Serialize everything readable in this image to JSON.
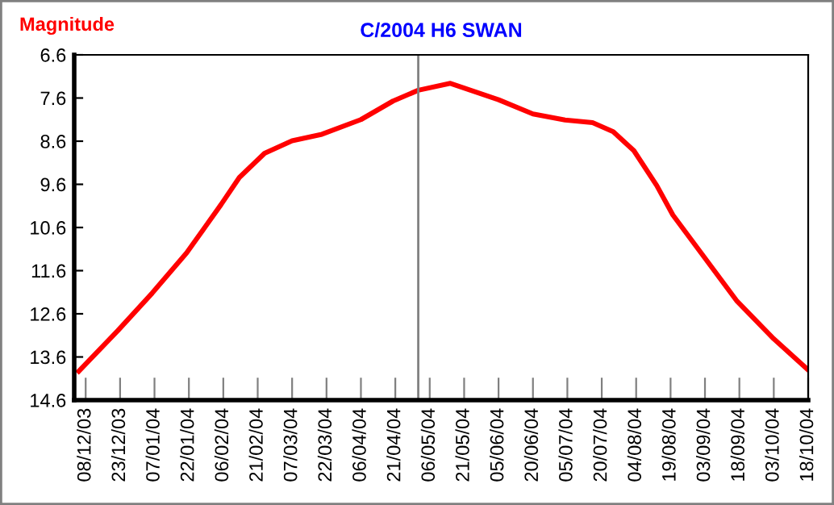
{
  "chart_data": {
    "type": "line",
    "title": "C/2004 H6 SWAN",
    "ylabel": "Magnitude",
    "x": [
      "2003-12-05",
      "2003-12-22",
      "2004-01-06",
      "2004-01-21",
      "2004-02-05",
      "2004-02-13",
      "2004-02-24",
      "2004-03-07",
      "2004-03-20",
      "2004-04-06",
      "2004-04-20",
      "2004-05-01",
      "2004-05-15",
      "2004-06-05",
      "2004-06-20",
      "2004-07-04",
      "2004-07-16",
      "2004-07-25",
      "2004-08-03",
      "2004-08-13",
      "2004-08-20",
      "2004-09-03",
      "2004-09-17",
      "2004-10-03",
      "2004-10-18"
    ],
    "series": [
      {
        "color": "#ff0000",
        "values": [
          13.93,
          12.99,
          12.12,
          11.19,
          10.07,
          9.44,
          8.88,
          8.59,
          8.44,
          8.1,
          7.67,
          7.42,
          7.26,
          7.64,
          7.97,
          8.11,
          8.17,
          8.38,
          8.82,
          9.63,
          10.31,
          11.31,
          12.31,
          13.18,
          13.9
        ]
      }
    ],
    "xlim": [
      "2003-12-03",
      "2004-10-18"
    ],
    "xticks": [
      {
        "value": "2003-12-08",
        "label": "08/12/03"
      },
      {
        "value": "2003-12-23",
        "label": "23/12/03"
      },
      {
        "value": "2004-01-07",
        "label": "07/01/04"
      },
      {
        "value": "2004-01-22",
        "label": "22/01/04"
      },
      {
        "value": "2004-02-06",
        "label": "06/02/04"
      },
      {
        "value": "2004-02-21",
        "label": "21/02/04"
      },
      {
        "value": "2004-03-07",
        "label": "07/03/04"
      },
      {
        "value": "2004-03-22",
        "label": "22/03/04"
      },
      {
        "value": "2004-04-06",
        "label": "06/04/04"
      },
      {
        "value": "2004-04-21",
        "label": "21/04/04"
      },
      {
        "value": "2004-05-06",
        "label": "06/05/04"
      },
      {
        "value": "2004-05-21",
        "label": "21/05/04"
      },
      {
        "value": "2004-06-05",
        "label": "05/06/04"
      },
      {
        "value": "2004-06-20",
        "label": "20/06/04"
      },
      {
        "value": "2004-07-05",
        "label": "05/07/04"
      },
      {
        "value": "2004-07-20",
        "label": "20/07/04"
      },
      {
        "value": "2004-08-04",
        "label": "04/08/04"
      },
      {
        "value": "2004-08-19",
        "label": "19/08/04"
      },
      {
        "value": "2004-09-03",
        "label": "03/09/04"
      },
      {
        "value": "2004-09-18",
        "label": "18/09/04"
      },
      {
        "value": "2004-10-03",
        "label": "03/10/04"
      },
      {
        "value": "2004-10-18",
        "label": "18/10/04"
      }
    ],
    "ylim": [
      14.6,
      6.6
    ],
    "yticks": [
      6.6,
      7.6,
      8.6,
      9.6,
      10.6,
      11.6,
      12.6,
      13.6,
      14.6
    ],
    "ref_lines": [
      {
        "axis": "x",
        "value": "2004-05-01",
        "color": "#808080"
      }
    ],
    "grid": false,
    "legend": false,
    "marker": "none",
    "line_style": "solid"
  }
}
